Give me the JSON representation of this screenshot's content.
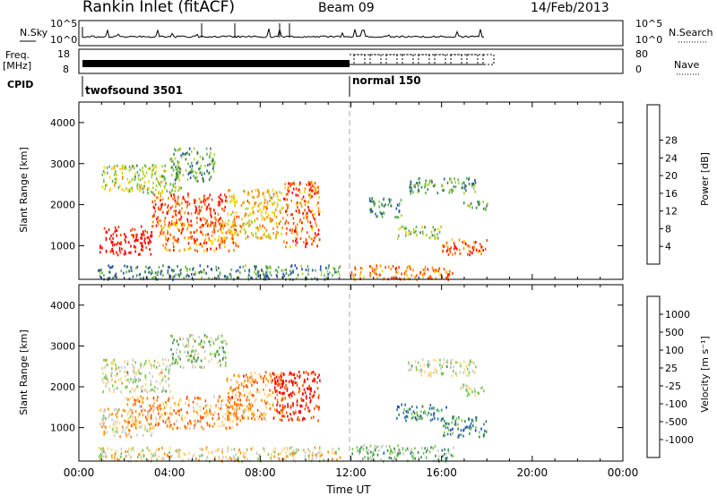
{
  "header": {
    "station": "Rankin Inlet (fitACF)",
    "beam": "Beam 09",
    "date": "14/Feb/2013"
  },
  "left_labels": {
    "nsky": "N.Sky",
    "freq": "Freq.",
    "freq_unit": "[MHz]",
    "cpid": "CPID"
  },
  "right_labels": {
    "nsearch": "N.Search",
    "nave": "Nave"
  },
  "noise_axis": {
    "left_ticks": [
      "10^5",
      "10^0"
    ],
    "right_ticks": [
      "10^5",
      "10^0"
    ]
  },
  "freq_axis": {
    "left_ticks": [
      "18",
      "8"
    ],
    "right_ticks": [
      "80",
      "0"
    ]
  },
  "cpid_labels": [
    "twofsound 3501",
    "normal 150"
  ],
  "chart_data": [
    {
      "type": "heatmap",
      "panel": "Power",
      "ylabel": "Slant Range [km]",
      "yticks": [
        "1000",
        "2000",
        "3000",
        "4000"
      ],
      "ylim": [
        180,
        4500
      ],
      "xlim": [
        0,
        24
      ],
      "colorbar": {
        "label": "Power [dB]",
        "ticks": [
          "4",
          "8",
          "12",
          "16",
          "20",
          "24",
          "28"
        ],
        "colors": [
          "#0000ff",
          "#2850b4",
          "#3c7c5a",
          "#5ab05a",
          "#a8d028",
          "#ffcc00",
          "#ff8c00",
          "#ff4400",
          "#ff0000"
        ]
      },
      "scatter_regions": [
        {
          "t0": 0.9,
          "t1": 3.2,
          "r0": 800,
          "r1": 1500,
          "level": 0.95
        },
        {
          "t0": 3.2,
          "t1": 6.5,
          "r0": 1500,
          "r1": 2300,
          "level": 0.85
        },
        {
          "t0": 3.5,
          "t1": 7.0,
          "r0": 900,
          "r1": 1600,
          "level": 0.75
        },
        {
          "t0": 6.5,
          "t1": 9.0,
          "r0": 1200,
          "r1": 2400,
          "level": 0.65
        },
        {
          "t0": 9.0,
          "t1": 10.6,
          "r0": 1000,
          "r1": 2600,
          "level": 0.8
        },
        {
          "t0": 1.0,
          "t1": 4.5,
          "r0": 2300,
          "r1": 3000,
          "level": 0.5
        },
        {
          "t0": 4.0,
          "t1": 6.0,
          "r0": 2600,
          "r1": 3400,
          "level": 0.35
        },
        {
          "t0": 0.8,
          "t1": 11.5,
          "r0": 200,
          "r1": 550,
          "level": 0.3
        },
        {
          "t0": 12.0,
          "t1": 16.5,
          "r0": 200,
          "r1": 550,
          "level": 0.75
        },
        {
          "t0": 12.8,
          "t1": 14.2,
          "r0": 1700,
          "r1": 2200,
          "level": 0.3
        },
        {
          "t0": 14.0,
          "t1": 16.0,
          "r0": 1200,
          "r1": 1500,
          "level": 0.45
        },
        {
          "t0": 16.0,
          "t1": 18.0,
          "r0": 800,
          "r1": 1200,
          "level": 0.8
        },
        {
          "t0": 14.5,
          "t1": 17.5,
          "r0": 2300,
          "r1": 2700,
          "level": 0.35
        },
        {
          "t0": 16.8,
          "t1": 18.0,
          "r0": 1900,
          "r1": 2100,
          "level": 0.4
        }
      ]
    },
    {
      "type": "heatmap",
      "panel": "Velocity",
      "ylabel": "Slant Range [km]",
      "yticks": [
        "1000",
        "2000",
        "3000",
        "4000"
      ],
      "ylim": [
        180,
        4500
      ],
      "xlim": [
        0,
        24
      ],
      "xlabel": "Time UT",
      "xticks": [
        "00:00",
        "04:00",
        "08:00",
        "12:00",
        "16:00",
        "20:00",
        "00:00"
      ],
      "colorbar": {
        "label": "Velocity [m s⁻¹]",
        "ticks": [
          "1000",
          "500",
          "100",
          "25",
          "-25",
          "-100",
          "-500",
          "-1000"
        ],
        "colors": [
          "#1e3cb4",
          "#2d6eaa",
          "#3c8c50",
          "#78c850",
          "#c8c8c8",
          "#ffd27a",
          "#ff8c00",
          "#ff5000",
          "#ff0000"
        ]
      },
      "scatter_regions": [
        {
          "t0": 0.9,
          "t1": 3.2,
          "r0": 800,
          "r1": 1500,
          "level": 0.58
        },
        {
          "t0": 2.0,
          "t1": 7.0,
          "r0": 1000,
          "r1": 1800,
          "level": 0.7
        },
        {
          "t0": 6.5,
          "t1": 9.0,
          "r0": 1200,
          "r1": 2400,
          "level": 0.72
        },
        {
          "t0": 8.5,
          "t1": 10.6,
          "r0": 1200,
          "r1": 2400,
          "level": 0.92
        },
        {
          "t0": 1.0,
          "t1": 4.0,
          "r0": 1900,
          "r1": 2700,
          "level": 0.5
        },
        {
          "t0": 4.0,
          "t1": 6.5,
          "r0": 2500,
          "r1": 3300,
          "level": 0.45
        },
        {
          "t0": 0.8,
          "t1": 11.5,
          "r0": 200,
          "r1": 550,
          "level": 0.55
        },
        {
          "t0": 12.0,
          "t1": 16.5,
          "r0": 200,
          "r1": 600,
          "level": 0.38
        },
        {
          "t0": 14.0,
          "t1": 16.2,
          "r0": 1200,
          "r1": 1600,
          "level": 0.25
        },
        {
          "t0": 16.0,
          "t1": 18.0,
          "r0": 800,
          "r1": 1300,
          "level": 0.22
        },
        {
          "t0": 14.5,
          "t1": 17.5,
          "r0": 2300,
          "r1": 2700,
          "level": 0.48
        },
        {
          "t0": 16.8,
          "t1": 18.0,
          "r0": 1800,
          "r1": 2100,
          "level": 0.5
        }
      ]
    }
  ]
}
